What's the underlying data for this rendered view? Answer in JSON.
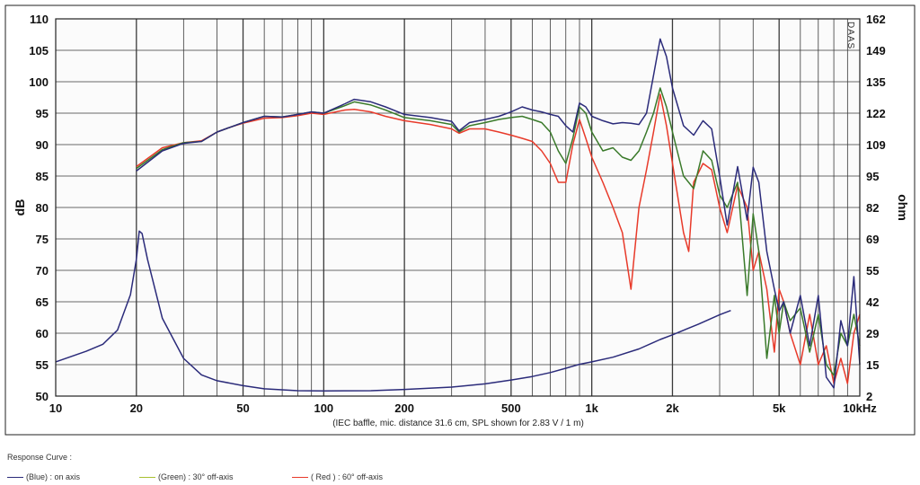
{
  "chart_data": {
    "type": "line",
    "title": "",
    "xlabel": "",
    "ylabel_left": "dB",
    "ylabel_right": "ohm",
    "x_scale": "log",
    "xlim": [
      10,
      10000
    ],
    "ylim_left": [
      50,
      110
    ],
    "ylim_right": [
      2,
      162
    ],
    "grid": true,
    "x_ticks": [
      {
        "v": 10,
        "label": "10"
      },
      {
        "v": 20,
        "label": "20"
      },
      {
        "v": 50,
        "label": "50"
      },
      {
        "v": 100,
        "label": "100"
      },
      {
        "v": 200,
        "label": "200"
      },
      {
        "v": 500,
        "label": "500"
      },
      {
        "v": 1000,
        "label": "1k"
      },
      {
        "v": 2000,
        "label": "2k"
      },
      {
        "v": 5000,
        "label": "5k"
      },
      {
        "v": 10000,
        "label": "10kHz"
      }
    ],
    "y_ticks_left": [
      "50",
      "55",
      "60",
      "65",
      "70",
      "75",
      "80",
      "85",
      "90",
      "95",
      "100",
      "105",
      "110"
    ],
    "y_ticks_right": [
      "2",
      "15",
      "29",
      "42",
      "55",
      "69",
      "82",
      "95",
      "109",
      "122",
      "135",
      "149",
      "162"
    ],
    "note": "(IEC baffle, mic. distance 31.6 cm, SPL shown for 2.83 V / 1 m)",
    "brand": "DAAS",
    "series": [
      {
        "name": "(Blue) : on axis",
        "color": "#2b2b7a",
        "axis": "left",
        "points": [
          [
            20,
            85.8
          ],
          [
            25,
            89
          ],
          [
            30,
            90.2
          ],
          [
            35,
            90.5
          ],
          [
            40,
            92
          ],
          [
            45,
            92.8
          ],
          [
            50,
            93.5
          ],
          [
            60,
            94.5
          ],
          [
            70,
            94.4
          ],
          [
            80,
            94.8
          ],
          [
            90,
            95.2
          ],
          [
            100,
            95
          ],
          [
            120,
            96.5
          ],
          [
            130,
            97.2
          ],
          [
            150,
            96.8
          ],
          [
            170,
            96
          ],
          [
            200,
            94.8
          ],
          [
            250,
            94.3
          ],
          [
            300,
            93.7
          ],
          [
            320,
            92.2
          ],
          [
            350,
            93.5
          ],
          [
            400,
            94
          ],
          [
            450,
            94.5
          ],
          [
            500,
            95.2
          ],
          [
            550,
            96
          ],
          [
            600,
            95.5
          ],
          [
            650,
            95.2
          ],
          [
            700,
            94.8
          ],
          [
            750,
            94.5
          ],
          [
            800,
            93
          ],
          [
            850,
            92
          ],
          [
            900,
            96.6
          ],
          [
            950,
            96
          ],
          [
            1000,
            94.5
          ],
          [
            1100,
            93.8
          ],
          [
            1200,
            93.3
          ],
          [
            1300,
            93.5
          ],
          [
            1400,
            93.4
          ],
          [
            1500,
            93.2
          ],
          [
            1600,
            95
          ],
          [
            1700,
            101
          ],
          [
            1800,
            106.8
          ],
          [
            1900,
            104
          ],
          [
            2000,
            99
          ],
          [
            2200,
            93
          ],
          [
            2400,
            91.5
          ],
          [
            2600,
            93.8
          ],
          [
            2800,
            92.5
          ],
          [
            3000,
            85
          ],
          [
            3200,
            77.2
          ],
          [
            3500,
            86.5
          ],
          [
            3800,
            78
          ],
          [
            4000,
            86.4
          ],
          [
            4200,
            84
          ],
          [
            4500,
            73
          ],
          [
            4800,
            67
          ],
          [
            5000,
            63.5
          ],
          [
            5200,
            65
          ],
          [
            5500,
            60
          ],
          [
            6000,
            66
          ],
          [
            6500,
            58
          ],
          [
            7000,
            66
          ],
          [
            7500,
            53
          ],
          [
            8000,
            51.3
          ],
          [
            8500,
            62
          ],
          [
            9000,
            58
          ],
          [
            9500,
            69
          ],
          [
            10000,
            55
          ]
        ]
      },
      {
        "name": "(Green) : 30° off-axis",
        "color": "#3a7a2a",
        "axis": "left",
        "points": [
          [
            20,
            86.2
          ],
          [
            25,
            89.2
          ],
          [
            30,
            90.3
          ],
          [
            35,
            90.5
          ],
          [
            40,
            92
          ],
          [
            45,
            92.8
          ],
          [
            50,
            93.5
          ],
          [
            60,
            94.5
          ],
          [
            70,
            94.4
          ],
          [
            80,
            94.8
          ],
          [
            90,
            95.2
          ],
          [
            100,
            95
          ],
          [
            120,
            96.2
          ],
          [
            130,
            96.8
          ],
          [
            150,
            96.3
          ],
          [
            170,
            95.5
          ],
          [
            200,
            94.3
          ],
          [
            250,
            93.8
          ],
          [
            300,
            93.2
          ],
          [
            320,
            92
          ],
          [
            350,
            93
          ],
          [
            400,
            93.5
          ],
          [
            450,
            94
          ],
          [
            500,
            94.3
          ],
          [
            550,
            94.5
          ],
          [
            600,
            94
          ],
          [
            650,
            93.5
          ],
          [
            700,
            92
          ],
          [
            750,
            89
          ],
          [
            800,
            87
          ],
          [
            850,
            91
          ],
          [
            900,
            96
          ],
          [
            950,
            95
          ],
          [
            1000,
            92
          ],
          [
            1100,
            89
          ],
          [
            1200,
            89.5
          ],
          [
            1300,
            88
          ],
          [
            1400,
            87.5
          ],
          [
            1500,
            89
          ],
          [
            1600,
            92
          ],
          [
            1700,
            95
          ],
          [
            1800,
            99
          ],
          [
            1900,
            96
          ],
          [
            2000,
            92
          ],
          [
            2200,
            85
          ],
          [
            2400,
            83
          ],
          [
            2600,
            89
          ],
          [
            2800,
            87.5
          ],
          [
            3000,
            82
          ],
          [
            3200,
            80
          ],
          [
            3500,
            84
          ],
          [
            3800,
            66
          ],
          [
            4000,
            79
          ],
          [
            4200,
            73
          ],
          [
            4500,
            56
          ],
          [
            4800,
            66
          ],
          [
            5000,
            60
          ],
          [
            5200,
            65
          ],
          [
            5500,
            62
          ],
          [
            6000,
            64
          ],
          [
            6500,
            57
          ],
          [
            7000,
            63
          ],
          [
            7500,
            55
          ],
          [
            8000,
            53.3
          ],
          [
            8500,
            60
          ],
          [
            9000,
            58
          ],
          [
            9500,
            63
          ],
          [
            10000,
            58
          ]
        ]
      },
      {
        "name": "( Red ) : 60° off-axis",
        "color": "#e83a2a",
        "axis": "left",
        "points": [
          [
            20,
            86.5
          ],
          [
            25,
            89.5
          ],
          [
            30,
            90.3
          ],
          [
            35,
            90.6
          ],
          [
            40,
            92
          ],
          [
            45,
            92.8
          ],
          [
            50,
            93.4
          ],
          [
            60,
            94.2
          ],
          [
            70,
            94.3
          ],
          [
            80,
            94.6
          ],
          [
            90,
            95
          ],
          [
            100,
            94.8
          ],
          [
            120,
            95.5
          ],
          [
            130,
            95.6
          ],
          [
            150,
            95.2
          ],
          [
            170,
            94.5
          ],
          [
            200,
            93.8
          ],
          [
            250,
            93.2
          ],
          [
            300,
            92.5
          ],
          [
            320,
            91.8
          ],
          [
            350,
            92.5
          ],
          [
            400,
            92.5
          ],
          [
            450,
            92
          ],
          [
            500,
            91.5
          ],
          [
            550,
            91
          ],
          [
            600,
            90.5
          ],
          [
            650,
            89
          ],
          [
            700,
            87
          ],
          [
            750,
            84
          ],
          [
            800,
            84
          ],
          [
            850,
            90
          ],
          [
            900,
            94
          ],
          [
            950,
            91
          ],
          [
            1000,
            88
          ],
          [
            1100,
            84
          ],
          [
            1200,
            80
          ],
          [
            1300,
            76
          ],
          [
            1400,
            67
          ],
          [
            1500,
            80
          ],
          [
            1600,
            86
          ],
          [
            1700,
            92
          ],
          [
            1800,
            98
          ],
          [
            1900,
            93
          ],
          [
            2000,
            87
          ],
          [
            2200,
            76
          ],
          [
            2300,
            73
          ],
          [
            2400,
            84
          ],
          [
            2600,
            87
          ],
          [
            2800,
            86
          ],
          [
            3000,
            80
          ],
          [
            3200,
            76
          ],
          [
            3500,
            83.5
          ],
          [
            3800,
            80
          ],
          [
            4000,
            70
          ],
          [
            4200,
            73
          ],
          [
            4500,
            67
          ],
          [
            4800,
            57
          ],
          [
            5000,
            67
          ],
          [
            5200,
            65
          ],
          [
            5500,
            60
          ],
          [
            6000,
            55
          ],
          [
            6500,
            63
          ],
          [
            7000,
            55
          ],
          [
            7500,
            58
          ],
          [
            8000,
            52
          ],
          [
            8500,
            56
          ],
          [
            9000,
            52
          ],
          [
            9500,
            60
          ],
          [
            10000,
            63
          ]
        ]
      },
      {
        "name": "Impedance",
        "color": "#2b2b7a",
        "axis": "right",
        "points": [
          [
            10,
            16.5
          ],
          [
            13,
            21
          ],
          [
            15,
            24
          ],
          [
            17,
            30
          ],
          [
            19,
            45
          ],
          [
            20,
            60
          ],
          [
            20.5,
            72
          ],
          [
            21,
            71
          ],
          [
            22,
            60
          ],
          [
            25,
            35
          ],
          [
            30,
            18
          ],
          [
            35,
            11
          ],
          [
            40,
            8.5
          ],
          [
            50,
            6.4
          ],
          [
            60,
            5.1
          ],
          [
            80,
            4.3
          ],
          [
            100,
            4.2
          ],
          [
            150,
            4.3
          ],
          [
            200,
            4.8
          ],
          [
            300,
            5.8
          ],
          [
            400,
            7.2
          ],
          [
            500,
            8.8
          ],
          [
            600,
            10.3
          ],
          [
            700,
            12
          ],
          [
            800,
            13.8
          ],
          [
            900,
            15.5
          ],
          [
            1000,
            16.5
          ],
          [
            1200,
            18.5
          ],
          [
            1500,
            22
          ],
          [
            1800,
            26
          ],
          [
            2000,
            28
          ],
          [
            2500,
            32.5
          ],
          [
            3000,
            36.5
          ],
          [
            3300,
            38.3
          ]
        ]
      }
    ]
  },
  "legend": {
    "title": "Response Curve :",
    "items": [
      {
        "label": "(Blue)  : on axis",
        "color": "#2b2b7a"
      },
      {
        "label": "(Green) : 30° off-axis",
        "color": "#a8c030"
      },
      {
        "label": "( Red ) : 60° off-axis",
        "color": "#e83a2a"
      }
    ]
  }
}
